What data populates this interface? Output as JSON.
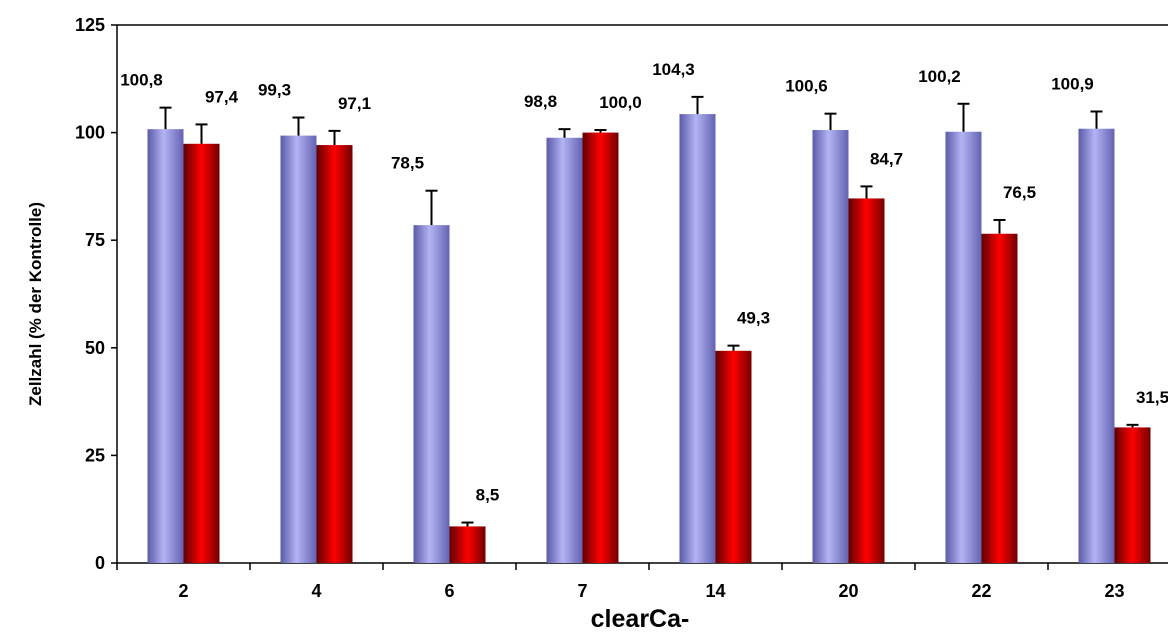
{
  "chart_data": {
    "type": "bar",
    "title": "",
    "xlabel": "clearCa-",
    "ylabel": "Zellzahl (% der Kontrolle)",
    "ylim": [
      0,
      125
    ],
    "yticks": [
      0,
      25,
      50,
      75,
      100,
      125
    ],
    "categories": [
      "2",
      "4",
      "6",
      "7",
      "14",
      "20",
      "22",
      "23"
    ],
    "grid": false,
    "legend": "none",
    "series": [
      {
        "color": "#8c8ce0",
        "values": [
          100.8,
          99.3,
          78.5,
          98.8,
          104.3,
          100.6,
          100.2,
          100.9
        ],
        "errors": [
          5.0,
          4.2,
          8.0,
          2.0,
          4.0,
          3.8,
          6.5,
          4.0
        ],
        "labels": [
          "100,8",
          "99,3",
          "78,5",
          "98,8",
          "104,3",
          "100,6",
          "100,2",
          "100,9"
        ]
      },
      {
        "color": "#e00000",
        "values": [
          97.4,
          97.1,
          8.5,
          100.0,
          49.3,
          84.7,
          76.5,
          31.5
        ],
        "errors": [
          4.5,
          3.3,
          0.9,
          0.6,
          1.2,
          2.8,
          3.2,
          0.6
        ],
        "labels": [
          "97,4",
          "97,1",
          "8,5",
          "100,0",
          "49,3",
          "84,7",
          "76,5",
          "31,5"
        ]
      }
    ]
  }
}
